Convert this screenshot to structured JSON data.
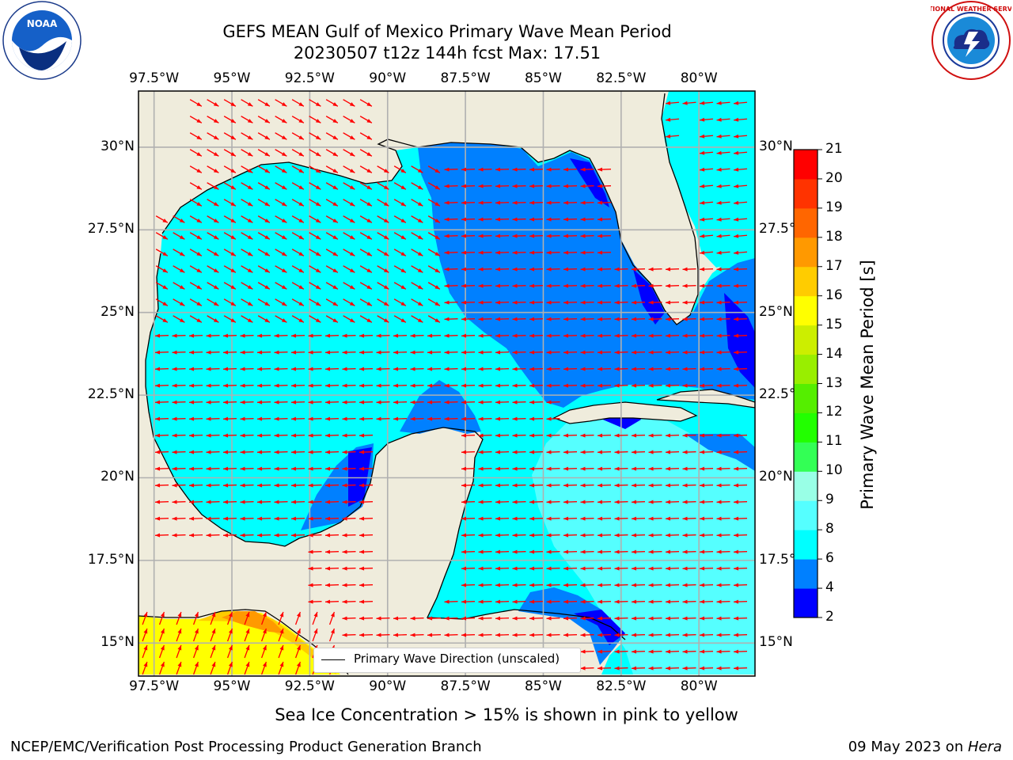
{
  "header": {
    "title_line1": "GEFS MEAN Gulf of Mexico Primary Wave Mean Period",
    "title_line2": "20230507 t12z 144h fcst   Max: 17.51"
  },
  "logos": {
    "left": "NOAA",
    "right": "NATIONAL WEATHER SERVICE"
  },
  "map": {
    "lon_labels": [
      "97.5°W",
      "95°W",
      "92.5°W",
      "90°W",
      "87.5°W",
      "85°W",
      "82.5°W",
      "80°W"
    ],
    "lat_labels_left": [
      "30°N",
      "27.5°N",
      "25°N",
      "22.5°N",
      "20°N",
      "17.5°N",
      "15°N"
    ],
    "lat_labels_right": [
      "30°N",
      "27.5°",
      "25°N",
      "22.5°",
      "20°N",
      "17.5°",
      "15°N"
    ],
    "lon_range": [
      -98,
      -78.2
    ],
    "lat_range": [
      14,
      31.7
    ],
    "legend_label": "Primary Wave Direction (unscaled)",
    "colors": {
      "land": "#efecdc",
      "ocean_6_8": "#00ffff",
      "ocean_4_6": "#0080ff",
      "ocean_2_4": "#0000ff",
      "ocean_8_9": "#55ffff",
      "grid": "#b0b0b0",
      "arrow": "#ff0000"
    }
  },
  "colorbar": {
    "label": "Primary Wave Mean Period [s]",
    "ticks": [
      "2",
      "4",
      "6",
      "8",
      "9",
      "10",
      "11",
      "12",
      "13",
      "14",
      "15",
      "16",
      "17",
      "18",
      "19",
      "20",
      "21"
    ],
    "colors": [
      "#0000ff",
      "#0080ff",
      "#00ffff",
      "#55ffff",
      "#99ffe6",
      "#33ff55",
      "#22ff00",
      "#55ee00",
      "#99ee00",
      "#ccee00",
      "#ffff00",
      "#ffcc00",
      "#ff9900",
      "#ff6600",
      "#ff3300",
      "#ff0000"
    ]
  },
  "footer": {
    "note": "Sea Ice Concentration > 15% is shown in pink to yellow",
    "credit": "NCEP/EMC/Verification Post Processing Product Generation Branch",
    "date": "09 May 2023 on ",
    "host": "Hera"
  }
}
